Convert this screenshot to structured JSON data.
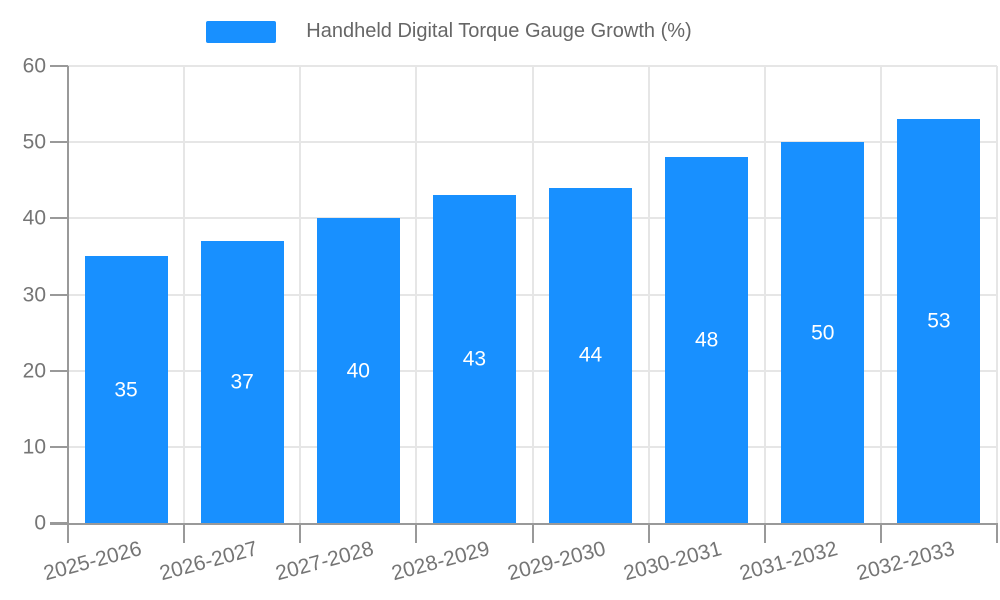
{
  "legend": {
    "label": "Handheld Digital Torque Gauge Growth (%)"
  },
  "chart_data": {
    "type": "bar",
    "title": "Handheld Digital Torque Gauge Growth (%)",
    "categories": [
      "2025-2026",
      "2026-2027",
      "2027-2028",
      "2028-2029",
      "2029-2030",
      "2030-2031",
      "2031-2032",
      "2032-2033"
    ],
    "values": [
      35,
      37,
      40,
      43,
      44,
      48,
      50,
      53
    ],
    "xlabel": "",
    "ylabel": "",
    "ylim": [
      0,
      60
    ],
    "yticks": [
      0,
      10,
      20,
      30,
      40,
      50,
      60
    ],
    "grid": true,
    "legend_position": "top-center",
    "x_label_rotation_deg": -15,
    "value_label_position": "inside-center",
    "colors": {
      "bar": "#1890ff",
      "gridline": "#e6e6e6",
      "axis": "#999999",
      "tick_label": "#757575",
      "legend_text": "#666666",
      "value_label": "#ffffff",
      "background": "#ffffff"
    }
  }
}
